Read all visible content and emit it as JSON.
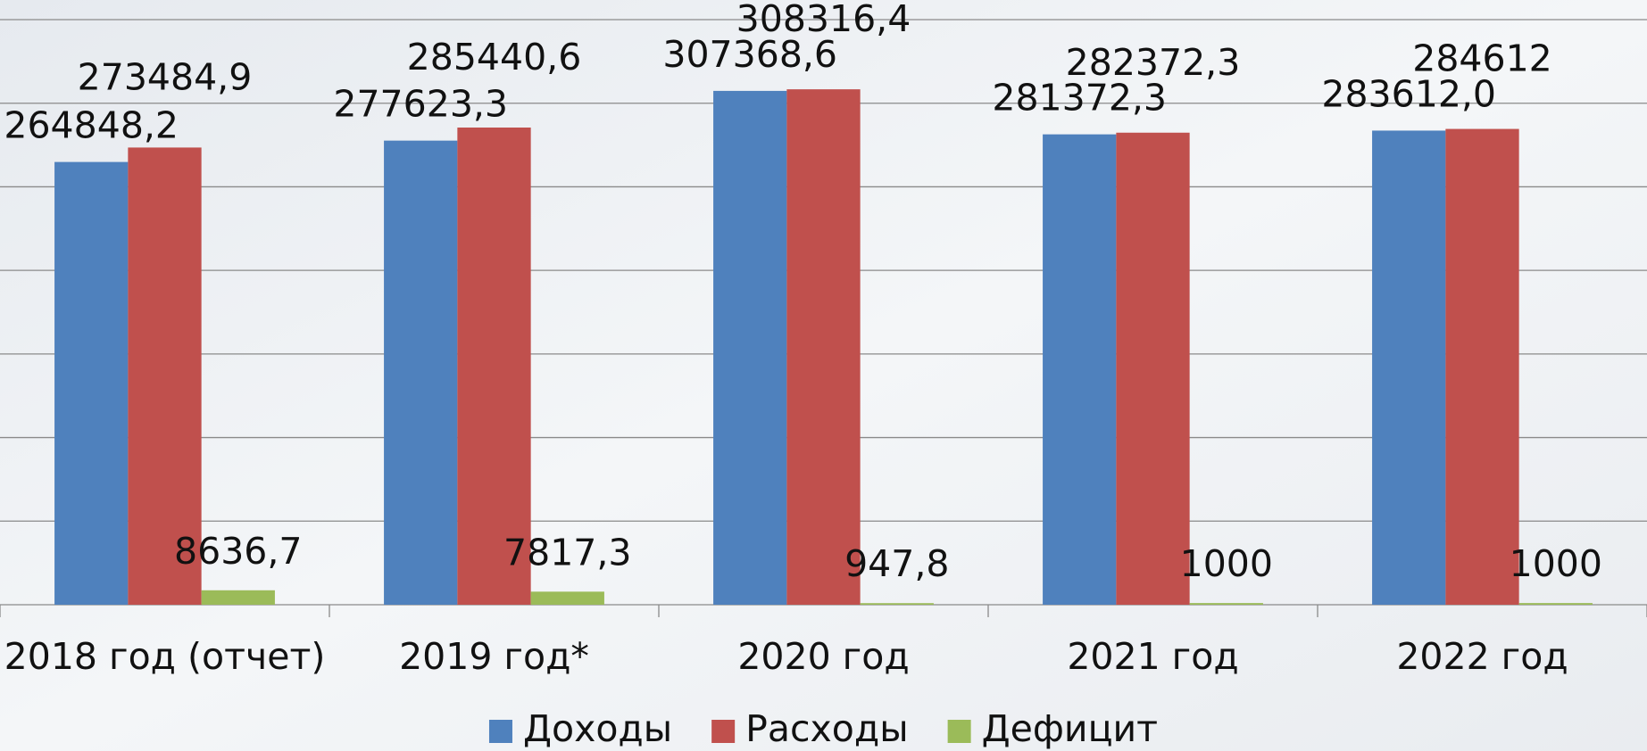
{
  "chart_data": {
    "type": "bar",
    "categories": [
      "2018 год (отчет)",
      "2019 год*",
      "2020 год",
      "2021 год",
      "2022 год"
    ],
    "series": [
      {
        "name": "Доходы",
        "color": "#4f81bd",
        "values": [
          264848.2,
          277623.3,
          307368.6,
          281372.3,
          283612.0
        ],
        "value_labels": [
          "264848,2",
          "277623,3",
          "307368,6",
          "281372,3",
          "283612,0"
        ]
      },
      {
        "name": "Расходы",
        "color": "#c0504d",
        "values": [
          273484.9,
          285440.6,
          308316.4,
          282372.3,
          284612
        ],
        "value_labels": [
          "273484,9",
          "285440,6",
          "308316,4",
          "282372,3",
          "284612"
        ]
      },
      {
        "name": "Дефицит",
        "color": "#9bbb59",
        "values": [
          8636.7,
          7817.3,
          947.8,
          1000,
          1000
        ],
        "value_labels": [
          "8636,7",
          "7817,3",
          "947,8",
          "1000",
          "1000"
        ]
      }
    ],
    "ylim": [
      0,
      350000
    ],
    "yticks": [
      0,
      50000,
      100000,
      150000,
      200000,
      250000,
      300000,
      350000
    ],
    "grid": true,
    "legend": "bottom"
  }
}
